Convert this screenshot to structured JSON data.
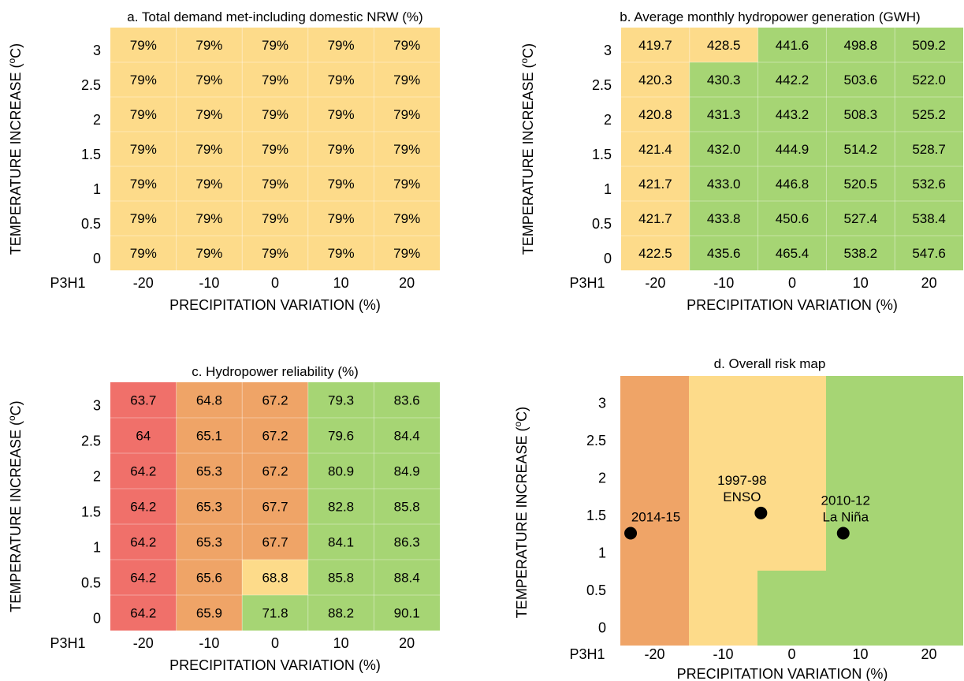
{
  "colors": {
    "yellow": "#FDDB8A",
    "green": "#A6D574",
    "orange": "#EFA467",
    "red": "#F0706A",
    "grid": "#ffffff",
    "point": "#000000"
  },
  "chart_data": [
    {
      "type": "heatmap",
      "title": "a. Total demand met-including domestic NRW (%)",
      "xlabel": "PRECIPITATION VARIATION (%)",
      "ylabel": "TEMPERATURE INCREASE (ºC)",
      "corner_label": "P3H1",
      "x_categories": [
        "-20",
        "-10",
        "0",
        "10",
        "20"
      ],
      "y_categories": [
        "3",
        "2.5",
        "2",
        "1.5",
        "1",
        "0.5",
        "0"
      ],
      "values": [
        [
          "79%",
          "79%",
          "79%",
          "79%",
          "79%"
        ],
        [
          "79%",
          "79%",
          "79%",
          "79%",
          "79%"
        ],
        [
          "79%",
          "79%",
          "79%",
          "79%",
          "79%"
        ],
        [
          "79%",
          "79%",
          "79%",
          "79%",
          "79%"
        ],
        [
          "79%",
          "79%",
          "79%",
          "79%",
          "79%"
        ],
        [
          "79%",
          "79%",
          "79%",
          "79%",
          "79%"
        ],
        [
          "79%",
          "79%",
          "79%",
          "79%",
          "79%"
        ]
      ],
      "cell_colors": [
        [
          "yellow",
          "yellow",
          "yellow",
          "yellow",
          "yellow"
        ],
        [
          "yellow",
          "yellow",
          "yellow",
          "yellow",
          "yellow"
        ],
        [
          "yellow",
          "yellow",
          "yellow",
          "yellow",
          "yellow"
        ],
        [
          "yellow",
          "yellow",
          "yellow",
          "yellow",
          "yellow"
        ],
        [
          "yellow",
          "yellow",
          "yellow",
          "yellow",
          "yellow"
        ],
        [
          "yellow",
          "yellow",
          "yellow",
          "yellow",
          "yellow"
        ],
        [
          "yellow",
          "yellow",
          "yellow",
          "yellow",
          "yellow"
        ]
      ]
    },
    {
      "type": "heatmap",
      "title": "b. Average monthly hydropower generation (GWH)",
      "xlabel": "PRECIPITATION VARIATION (%)",
      "ylabel": "TEMPERATURE INCREASE (ºC)",
      "corner_label": "P3H1",
      "x_categories": [
        "-20",
        "-10",
        "0",
        "10",
        "20"
      ],
      "y_categories": [
        "3",
        "2.5",
        "2",
        "1.5",
        "1",
        "0.5",
        "0"
      ],
      "values": [
        [
          "419.7",
          "428.5",
          "441.6",
          "498.8",
          "509.2"
        ],
        [
          "420.3",
          "430.3",
          "442.2",
          "503.6",
          "522.0"
        ],
        [
          "420.8",
          "431.3",
          "443.2",
          "508.3",
          "525.2"
        ],
        [
          "421.4",
          "432.0",
          "444.9",
          "514.2",
          "528.7"
        ],
        [
          "421.7",
          "433.0",
          "446.8",
          "520.5",
          "532.6"
        ],
        [
          "421.7",
          "433.8",
          "450.6",
          "527.4",
          "538.4"
        ],
        [
          "422.5",
          "435.6",
          "465.4",
          "538.2",
          "547.6"
        ]
      ],
      "cell_colors": [
        [
          "yellow",
          "yellow",
          "green",
          "green",
          "green"
        ],
        [
          "yellow",
          "green",
          "green",
          "green",
          "green"
        ],
        [
          "yellow",
          "green",
          "green",
          "green",
          "green"
        ],
        [
          "yellow",
          "green",
          "green",
          "green",
          "green"
        ],
        [
          "yellow",
          "green",
          "green",
          "green",
          "green"
        ],
        [
          "yellow",
          "green",
          "green",
          "green",
          "green"
        ],
        [
          "yellow",
          "green",
          "green",
          "green",
          "green"
        ]
      ]
    },
    {
      "type": "heatmap",
      "title": "c. Hydropower reliability (%)",
      "xlabel": "PRECIPITATION VARIATION (%)",
      "ylabel": "TEMPERATURE INCREASE (ºC)",
      "corner_label": "P3H1",
      "x_categories": [
        "-20",
        "-10",
        "0",
        "10",
        "20"
      ],
      "y_categories": [
        "3",
        "2.5",
        "2",
        "1.5",
        "1",
        "0.5",
        "0"
      ],
      "values": [
        [
          "63.7",
          "64.8",
          "67.2",
          "79.3",
          "83.6"
        ],
        [
          "64",
          "65.1",
          "67.2",
          "79.6",
          "84.4"
        ],
        [
          "64.2",
          "65.3",
          "67.2",
          "80.9",
          "84.9"
        ],
        [
          "64.2",
          "65.3",
          "67.7",
          "82.8",
          "85.8"
        ],
        [
          "64.2",
          "65.3",
          "67.7",
          "84.1",
          "86.3"
        ],
        [
          "64.2",
          "65.6",
          "68.8",
          "85.8",
          "88.4"
        ],
        [
          "64.2",
          "65.9",
          "71.8",
          "88.2",
          "90.1"
        ]
      ],
      "cell_colors": [
        [
          "red",
          "orange",
          "orange",
          "green",
          "green"
        ],
        [
          "red",
          "orange",
          "orange",
          "green",
          "green"
        ],
        [
          "red",
          "orange",
          "orange",
          "green",
          "green"
        ],
        [
          "red",
          "orange",
          "orange",
          "green",
          "green"
        ],
        [
          "red",
          "orange",
          "orange",
          "green",
          "green"
        ],
        [
          "red",
          "orange",
          "yellow",
          "green",
          "green"
        ],
        [
          "red",
          "orange",
          "green",
          "green",
          "green"
        ]
      ]
    },
    {
      "type": "scatter",
      "title": "d. Overall risk map",
      "xlabel": "PRECIPITATION VARIATION (%)",
      "ylabel": "TEMPERATURE INCREASE (ºC)",
      "corner_label": "P3H1",
      "x_ticks": [
        "-20",
        "-10",
        "0",
        "10",
        "20"
      ],
      "y_ticks": [
        "0",
        "0.5",
        "1",
        "1.5",
        "2",
        "2.5",
        "3"
      ],
      "xlim": [
        -25,
        25
      ],
      "ylim": [
        -0.25,
        3.35
      ],
      "regions": [
        {
          "color": "orange",
          "x_from": -25,
          "x_to": -15,
          "y_from": -0.25,
          "y_to": 3.35
        },
        {
          "color": "yellow",
          "x_from": -15,
          "x_to": 5,
          "y_from": 0.75,
          "y_to": 3.35
        },
        {
          "color": "yellow",
          "x_from": -15,
          "x_to": -5,
          "y_from": -0.25,
          "y_to": 0.75
        },
        {
          "color": "green",
          "x_from": 5,
          "x_to": 25,
          "y_from": 0.75,
          "y_to": 3.35
        },
        {
          "color": "green",
          "x_from": -5,
          "x_to": 25,
          "y_from": -0.25,
          "y_to": 0.75
        }
      ],
      "points": [
        {
          "x": -23.5,
          "y": 1.25,
          "label_lines": [
            "2014-15"
          ]
        },
        {
          "x": -4.5,
          "y": 1.52,
          "label_lines": [
            "1997-98",
            "ENSO"
          ]
        },
        {
          "x": 7.5,
          "y": 1.25,
          "label_lines": [
            "2010-12",
            "La Niña"
          ]
        }
      ]
    }
  ]
}
